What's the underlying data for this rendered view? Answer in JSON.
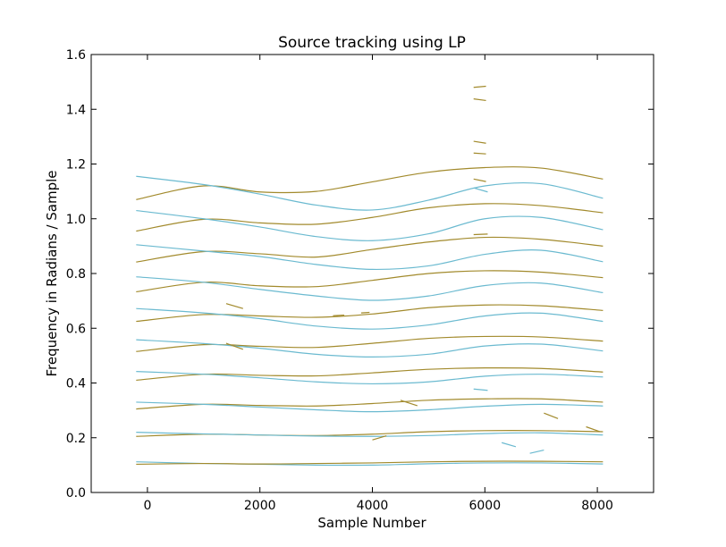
{
  "chart_data": {
    "type": "line",
    "title": "Source tracking using LP",
    "xlabel": "Sample Number",
    "ylabel": "Frequency in Radians / Sample",
    "xlim": [
      -1000,
      9000
    ],
    "ylim": [
      0.0,
      1.6
    ],
    "xticks": [
      0,
      2000,
      4000,
      6000,
      8000
    ],
    "xtick_labels": [
      "0",
      "2000",
      "4000",
      "6000",
      "8000"
    ],
    "yticks": [
      0.0,
      0.2,
      0.4,
      0.6,
      0.8,
      1.0,
      1.2,
      1.4,
      1.6
    ],
    "ytick_labels": [
      "0.0",
      "0.2",
      "0.4",
      "0.6",
      "0.8",
      "1.0",
      "1.2",
      "1.4",
      "1.6"
    ],
    "grid": false,
    "legend": "none",
    "colors": {
      "cyan": "#6bbad0",
      "olive": "#a28a2c"
    },
    "series": [
      {
        "color": "cyan",
        "x": [
          -200,
          1000,
          2000,
          3000,
          4000,
          5000,
          6000,
          7000,
          8100
        ],
        "y": [
          0.112,
          0.106,
          0.103,
          0.1,
          0.1,
          0.105,
          0.108,
          0.108,
          0.104
        ]
      },
      {
        "color": "olive",
        "x": [
          -200,
          1000,
          2000,
          3000,
          4000,
          5000,
          6000,
          7000,
          8100
        ],
        "y": [
          0.103,
          0.106,
          0.104,
          0.106,
          0.108,
          0.112,
          0.114,
          0.114,
          0.112
        ]
      },
      {
        "color": "olive",
        "x": [
          -200,
          1000,
          2000,
          3000,
          4000,
          5000,
          6000,
          7000,
          8100
        ],
        "y": [
          0.205,
          0.213,
          0.21,
          0.208,
          0.213,
          0.222,
          0.226,
          0.226,
          0.222
        ]
      },
      {
        "color": "cyan",
        "x": [
          -200,
          1000,
          2000,
          3000,
          4000,
          5000,
          6000,
          7000,
          8100
        ],
        "y": [
          0.22,
          0.214,
          0.21,
          0.206,
          0.205,
          0.208,
          0.215,
          0.218,
          0.21
        ]
      },
      {
        "color": "olive",
        "x": [
          -200,
          1000,
          2000,
          3000,
          4000,
          5000,
          6000,
          7000,
          8100
        ],
        "y": [
          0.305,
          0.322,
          0.318,
          0.316,
          0.325,
          0.337,
          0.342,
          0.342,
          0.33
        ]
      },
      {
        "color": "cyan",
        "x": [
          -200,
          1000,
          2000,
          3000,
          4000,
          5000,
          6000,
          7000,
          8100
        ],
        "y": [
          0.33,
          0.322,
          0.312,
          0.302,
          0.295,
          0.302,
          0.315,
          0.322,
          0.316
        ]
      },
      {
        "color": "olive",
        "x": [
          -200,
          1000,
          2000,
          3000,
          4000,
          5000,
          6000,
          7000,
          8100
        ],
        "y": [
          0.41,
          0.432,
          0.428,
          0.426,
          0.437,
          0.45,
          0.455,
          0.453,
          0.44
        ]
      },
      {
        "color": "cyan",
        "x": [
          -200,
          1000,
          2000,
          3000,
          4000,
          5000,
          6000,
          7000,
          8100
        ],
        "y": [
          0.442,
          0.432,
          0.419,
          0.404,
          0.397,
          0.404,
          0.425,
          0.432,
          0.422
        ]
      },
      {
        "color": "olive",
        "x": [
          -200,
          1000,
          2000,
          3000,
          4000,
          5000,
          6000,
          7000,
          8100
        ],
        "y": [
          0.515,
          0.54,
          0.534,
          0.53,
          0.545,
          0.563,
          0.57,
          0.568,
          0.553
        ]
      },
      {
        "color": "cyan",
        "x": [
          -200,
          1000,
          2000,
          3000,
          4000,
          5000,
          6000,
          7000,
          8100
        ],
        "y": [
          0.558,
          0.544,
          0.527,
          0.505,
          0.495,
          0.505,
          0.535,
          0.542,
          0.517
        ]
      },
      {
        "color": "olive",
        "x": [
          -200,
          1000,
          2000,
          3000,
          4000,
          5000,
          6000,
          7000,
          8100
        ],
        "y": [
          0.625,
          0.65,
          0.645,
          0.64,
          0.652,
          0.675,
          0.685,
          0.682,
          0.665
        ]
      },
      {
        "color": "cyan",
        "x": [
          -200,
          1000,
          2000,
          3000,
          4000,
          5000,
          6000,
          7000,
          8100
        ],
        "y": [
          0.672,
          0.656,
          0.635,
          0.608,
          0.597,
          0.612,
          0.645,
          0.655,
          0.625
        ]
      },
      {
        "color": "olive",
        "x": [
          -200,
          1000,
          2000,
          3000,
          4000,
          5000,
          6000,
          7000,
          8100
        ],
        "y": [
          0.733,
          0.768,
          0.755,
          0.752,
          0.775,
          0.8,
          0.81,
          0.805,
          0.785
        ]
      },
      {
        "color": "cyan",
        "x": [
          -200,
          1000,
          2000,
          3000,
          4000,
          5000,
          6000,
          7000,
          8100
        ],
        "y": [
          0.788,
          0.768,
          0.742,
          0.718,
          0.702,
          0.718,
          0.756,
          0.765,
          0.73
        ]
      },
      {
        "color": "olive",
        "x": [
          -200,
          1000,
          2000,
          3000,
          4000,
          5000,
          6000,
          7000,
          8100
        ],
        "y": [
          0.842,
          0.88,
          0.872,
          0.86,
          0.888,
          0.915,
          0.932,
          0.925,
          0.9
        ]
      },
      {
        "color": "cyan",
        "x": [
          -200,
          1000,
          2000,
          3000,
          4000,
          5000,
          6000,
          7000,
          8100
        ],
        "y": [
          0.905,
          0.882,
          0.862,
          0.833,
          0.815,
          0.828,
          0.87,
          0.885,
          0.843
        ]
      },
      {
        "color": "olive",
        "x": [
          -200,
          1000,
          2000,
          3000,
          4000,
          5000,
          6000,
          7000,
          8100
        ],
        "y": [
          0.955,
          0.998,
          0.985,
          0.98,
          1.005,
          1.04,
          1.055,
          1.048,
          1.022
        ]
      },
      {
        "color": "cyan",
        "x": [
          -200,
          1000,
          2000,
          3000,
          4000,
          5000,
          6000,
          7000,
          8100
        ],
        "y": [
          1.03,
          1.0,
          0.97,
          0.935,
          0.92,
          0.945,
          1.0,
          1.005,
          0.96
        ]
      },
      {
        "color": "olive",
        "x": [
          -200,
          1000,
          2000,
          3000,
          4000,
          5000,
          6000,
          7000,
          8100
        ],
        "y": [
          1.07,
          1.12,
          1.098,
          1.1,
          1.135,
          1.17,
          1.187,
          1.185,
          1.145
        ]
      },
      {
        "color": "cyan",
        "x": [
          -200,
          1000,
          2000,
          3000,
          4000,
          5000,
          6000,
          7000,
          8100
        ],
        "y": [
          1.155,
          1.125,
          1.09,
          1.05,
          1.032,
          1.068,
          1.12,
          1.128,
          1.075
        ]
      }
    ],
    "fragments": [
      {
        "color": "olive",
        "x": [
          5800,
          6020
        ],
        "y": [
          1.48,
          1.484
        ]
      },
      {
        "color": "olive",
        "x": [
          5800,
          6020
        ],
        "y": [
          1.438,
          1.432
        ]
      },
      {
        "color": "olive",
        "x": [
          5800,
          6020
        ],
        "y": [
          1.283,
          1.276
        ]
      },
      {
        "color": "olive",
        "x": [
          5800,
          6020
        ],
        "y": [
          1.24,
          1.237
        ]
      },
      {
        "color": "olive",
        "x": [
          5800,
          6020
        ],
        "y": [
          1.145,
          1.136
        ]
      },
      {
        "color": "cyan",
        "x": [
          5800,
          6050
        ],
        "y": [
          1.113,
          1.098
        ]
      },
      {
        "color": "olive",
        "x": [
          5800,
          6050
        ],
        "y": [
          0.942,
          0.944
        ]
      },
      {
        "color": "olive",
        "x": [
          1400,
          1700
        ],
        "y": [
          0.69,
          0.672
        ]
      },
      {
        "color": "olive",
        "x": [
          3300,
          3500
        ],
        "y": [
          0.646,
          0.648
        ]
      },
      {
        "color": "olive",
        "x": [
          3800,
          3950
        ],
        "y": [
          0.656,
          0.658
        ]
      },
      {
        "color": "olive",
        "x": [
          1400,
          1700
        ],
        "y": [
          0.545,
          0.523
        ]
      },
      {
        "color": "cyan",
        "x": [
          5800,
          6050
        ],
        "y": [
          0.378,
          0.373
        ]
      },
      {
        "color": "olive",
        "x": [
          4500,
          4800
        ],
        "y": [
          0.337,
          0.317
        ]
      },
      {
        "color": "olive",
        "x": [
          7050,
          7300
        ],
        "y": [
          0.29,
          0.27
        ]
      },
      {
        "color": "olive",
        "x": [
          7800,
          8050
        ],
        "y": [
          0.24,
          0.222
        ]
      },
      {
        "color": "olive",
        "x": [
          4000,
          4250
        ],
        "y": [
          0.192,
          0.207
        ]
      },
      {
        "color": "cyan",
        "x": [
          6300,
          6550
        ],
        "y": [
          0.182,
          0.167
        ]
      },
      {
        "color": "cyan",
        "x": [
          6800,
          7050
        ],
        "y": [
          0.143,
          0.155
        ]
      }
    ]
  }
}
